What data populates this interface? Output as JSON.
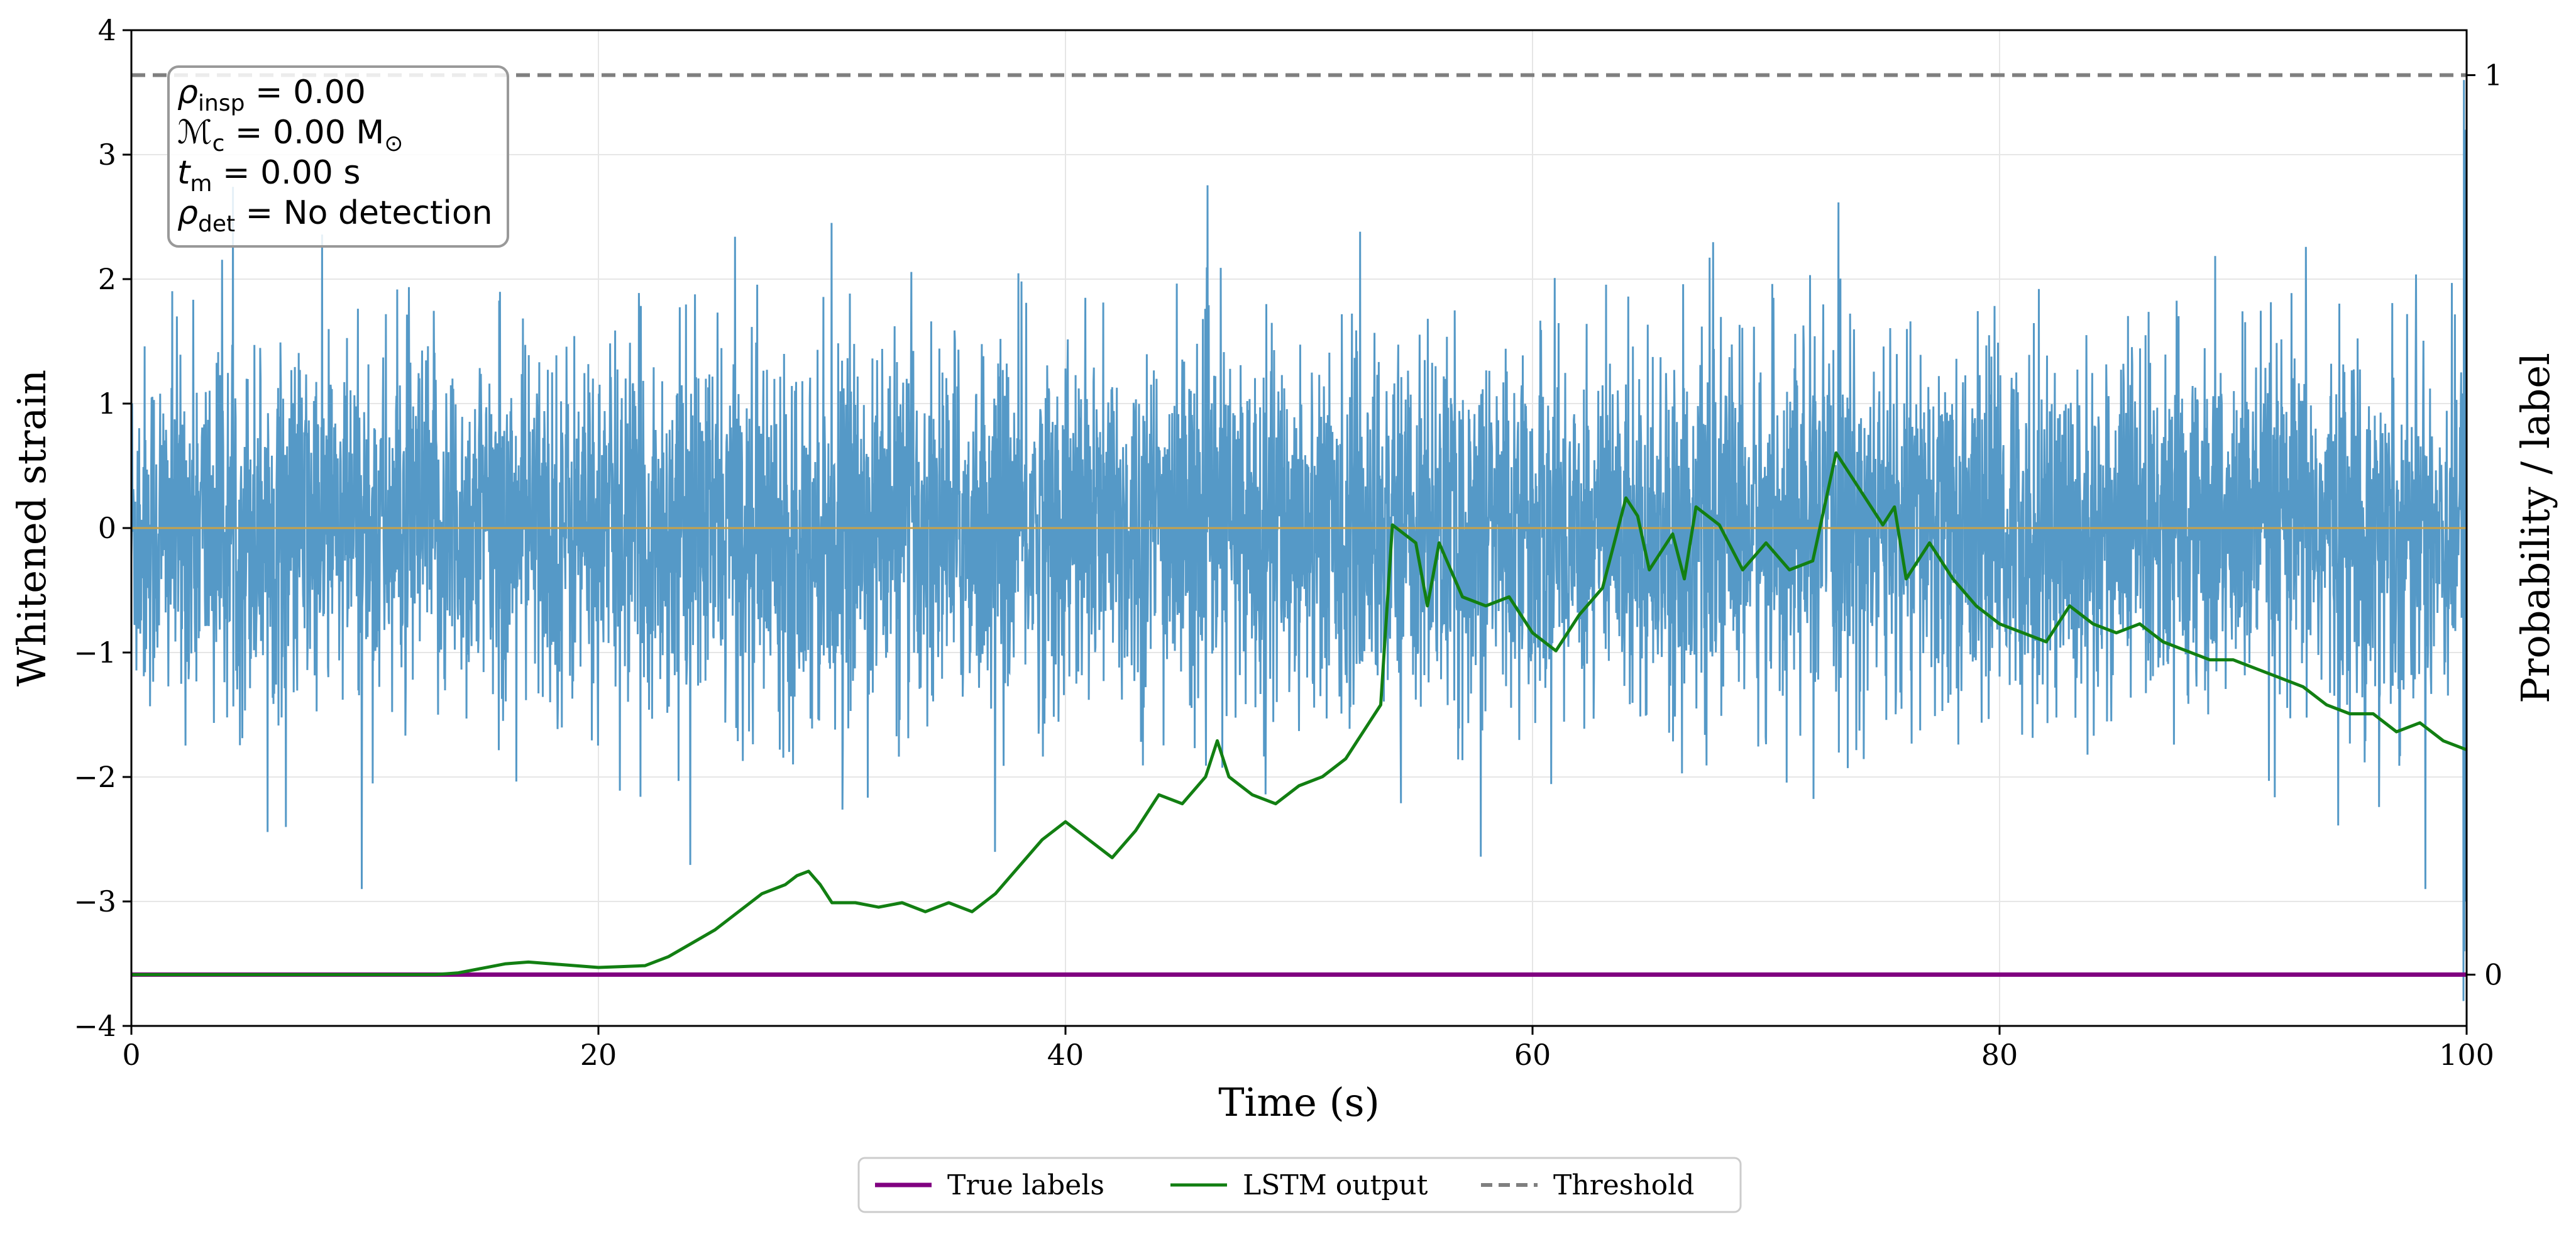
{
  "chart_data": {
    "type": "line",
    "xlabel": "Time (s)",
    "ylabel": "Whitened strain",
    "ylabel_right": "Probability / label",
    "xlim": [
      0,
      100
    ],
    "ylim": [
      -4,
      4
    ],
    "ylim_right": [
      -0.057,
      1.05
    ],
    "x_ticks": [
      "0",
      "20",
      "40",
      "60",
      "80",
      "100"
    ],
    "y_ticks": [
      "−4",
      "−3",
      "−2",
      "−1",
      "0",
      "1",
      "2",
      "3",
      "4"
    ],
    "y_ticks_right": [
      "0",
      "1"
    ],
    "grid": true,
    "colors": {
      "strain": "#5599c7",
      "zero_line": "#c8a24a",
      "true_labels": "#800080",
      "lstm": "#127f12",
      "threshold": "#7f7f7f"
    },
    "strain_noise": {
      "description_axis": "left",
      "x_range": [
        0,
        100
      ],
      "typical_envelope": [
        -2.0,
        2.0
      ],
      "extremes": [
        -2.9,
        4.0
      ]
    },
    "series": [
      {
        "name": "True labels",
        "axis": "right",
        "x": [
          0,
          100
        ],
        "y": [
          0,
          0
        ]
      },
      {
        "name": "LSTM output",
        "axis": "right",
        "x": [
          0,
          13,
          14,
          15,
          16,
          17,
          18,
          19,
          20,
          21,
          22,
          23,
          24,
          25,
          26,
          27,
          28,
          28.5,
          29,
          29.5,
          30,
          31,
          32,
          33,
          34,
          35,
          36,
          37,
          38,
          39,
          40,
          41,
          42,
          43,
          44,
          45,
          46,
          46.5,
          47,
          48,
          49,
          50,
          51,
          52,
          53,
          53.5,
          54,
          55,
          55.5,
          56,
          57,
          58,
          59,
          60,
          61,
          62,
          63,
          64,
          64.5,
          65,
          66,
          66.5,
          67,
          68,
          69,
          70,
          71,
          72,
          73,
          73.5,
          74,
          75,
          75.5,
          76,
          77,
          78,
          79,
          80,
          81,
          82,
          83,
          84,
          85,
          86,
          87,
          88,
          89,
          90,
          91,
          92,
          93,
          94,
          95,
          96,
          97,
          98,
          99,
          100
        ],
        "y": [
          0,
          0,
          0.002,
          0.007,
          0.012,
          0.014,
          0.012,
          0.01,
          0.008,
          0.009,
          0.01,
          0.02,
          0.035,
          0.05,
          0.07,
          0.09,
          0.1,
          0.11,
          0.115,
          0.1,
          0.08,
          0.08,
          0.075,
          0.08,
          0.07,
          0.08,
          0.07,
          0.09,
          0.12,
          0.15,
          0.17,
          0.15,
          0.13,
          0.16,
          0.2,
          0.19,
          0.22,
          0.26,
          0.22,
          0.2,
          0.19,
          0.21,
          0.22,
          0.24,
          0.28,
          0.3,
          0.5,
          0.48,
          0.41,
          0.48,
          0.42,
          0.41,
          0.42,
          0.38,
          0.36,
          0.4,
          0.43,
          0.53,
          0.51,
          0.45,
          0.49,
          0.44,
          0.52,
          0.5,
          0.45,
          0.48,
          0.45,
          0.46,
          0.58,
          0.56,
          0.54,
          0.5,
          0.52,
          0.44,
          0.48,
          0.44,
          0.41,
          0.39,
          0.38,
          0.37,
          0.41,
          0.39,
          0.38,
          0.39,
          0.37,
          0.36,
          0.35,
          0.35,
          0.34,
          0.33,
          0.32,
          0.3,
          0.29,
          0.29,
          0.27,
          0.28,
          0.26,
          0.25
        ]
      },
      {
        "name": "Threshold",
        "axis": "right",
        "x": [
          0,
          100
        ],
        "y": [
          1,
          1
        ]
      }
    ],
    "legend": {
      "placement": "bottom-center",
      "entries": [
        "True labels",
        "LSTM output",
        "Threshold"
      ]
    },
    "annotation": {
      "placement": "top-left",
      "rows": [
        {
          "var": "ρ",
          "sub": "insp",
          "rest": " = 0.00"
        },
        {
          "var": "ℳ",
          "sub": "c",
          "rest": " = 0.00 M",
          "unit_sub": "⊙"
        },
        {
          "var": "t",
          "sub": "m",
          "rest": " = 0.00 s"
        },
        {
          "var": "ρ",
          "sub": "det",
          "rest": " = No detection"
        }
      ]
    }
  }
}
